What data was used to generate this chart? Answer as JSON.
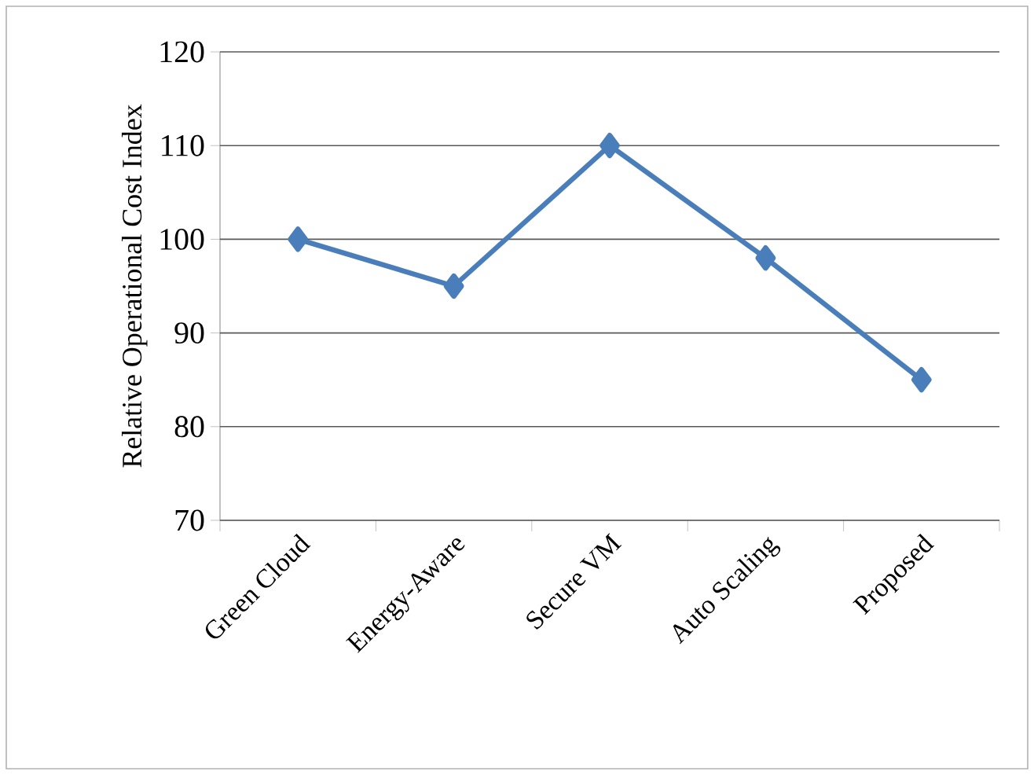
{
  "chart_data": {
    "type": "line",
    "ylabel": "Relative Operational Cost Index",
    "categories": [
      "Green Cloud",
      "Energy-Aware",
      "Secure VM",
      "Auto Scaling",
      "Proposed"
    ],
    "series": [
      {
        "color": "#4a7ebb",
        "values": [
          100,
          95,
          110,
          98,
          85
        ]
      }
    ],
    "ylim": [
      70,
      120
    ],
    "yticks": [
      70,
      80,
      90,
      100,
      110,
      120
    ],
    "grid": "y",
    "marker": "diamond",
    "line_style": "solid"
  }
}
